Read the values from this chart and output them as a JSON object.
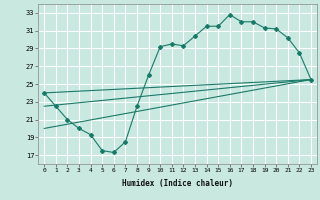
{
  "xlabel": "Humidex (Indice chaleur)",
  "ylabel": "",
  "bg_color": "#c8e8e0",
  "grid_color": "#ffffff",
  "line_color": "#1a7a6a",
  "xlim": [
    -0.5,
    23.5
  ],
  "ylim": [
    16,
    34
  ],
  "yticks": [
    17,
    19,
    21,
    23,
    25,
    27,
    29,
    31,
    33
  ],
  "xticks": [
    0,
    1,
    2,
    3,
    4,
    5,
    6,
    7,
    8,
    9,
    10,
    11,
    12,
    13,
    14,
    15,
    16,
    17,
    18,
    19,
    20,
    21,
    22,
    23
  ],
  "line1_x": [
    0,
    1,
    2,
    3,
    4,
    5,
    6,
    7,
    8,
    9,
    10,
    11,
    12,
    13,
    14,
    15,
    16,
    17,
    18,
    19,
    20,
    21,
    22,
    23
  ],
  "line1_y": [
    24.0,
    22.5,
    21.0,
    20.0,
    19.3,
    17.5,
    17.3,
    18.5,
    22.5,
    26.0,
    29.2,
    29.5,
    29.3,
    30.4,
    31.5,
    31.5,
    32.8,
    32.0,
    32.0,
    31.3,
    31.2,
    30.2,
    28.5,
    25.5
  ],
  "line2_x": [
    0,
    23
  ],
  "line2_y": [
    20.0,
    25.5
  ],
  "line3_x": [
    0,
    23
  ],
  "line3_y": [
    22.5,
    25.5
  ],
  "line4_x": [
    0,
    23
  ],
  "line4_y": [
    24.0,
    25.5
  ]
}
